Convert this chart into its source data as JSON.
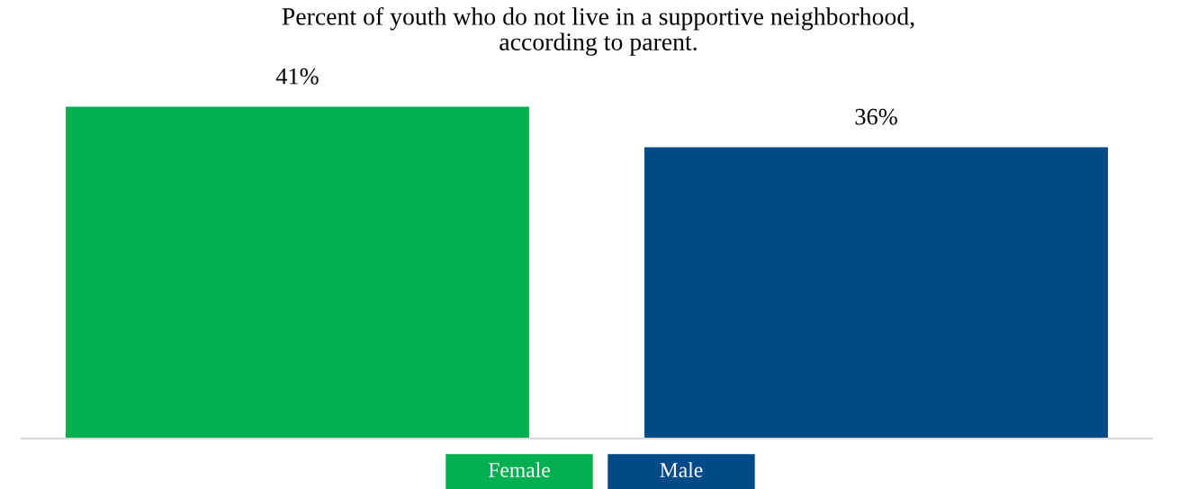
{
  "chart_data": {
    "type": "bar",
    "title": "Percent of youth who do not live in a supportive neighborhood,\naccording to parent.",
    "categories": [
      null
    ],
    "series": [
      {
        "name": "Female",
        "color": "#00b050",
        "values": [
          41
        ],
        "value_labels": [
          "41%"
        ]
      },
      {
        "name": "Male",
        "color": "#004a87",
        "values": [
          36
        ],
        "value_labels": [
          "36%"
        ]
      }
    ],
    "grid": false,
    "legend": "bottom"
  }
}
